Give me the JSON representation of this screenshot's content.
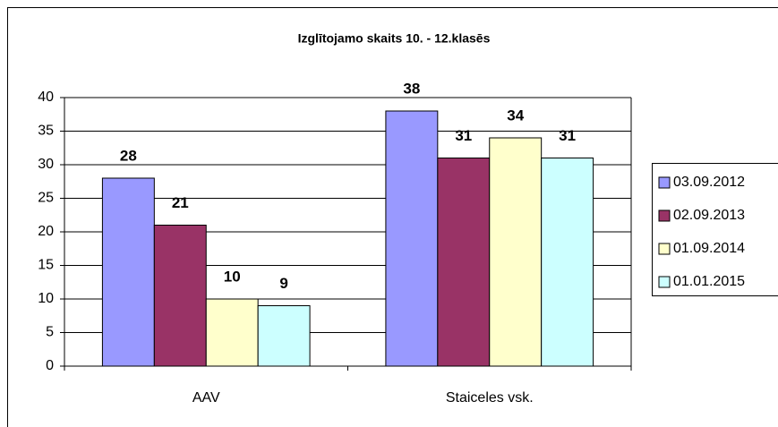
{
  "chart_data": {
    "type": "bar",
    "title": "Izglītojamo skaits 10. - 12.klasēs",
    "categories": [
      "AAV",
      "Staiceles vsk."
    ],
    "series": [
      {
        "name": "03.09.2012",
        "color": "#9999ff",
        "values": [
          28,
          38
        ]
      },
      {
        "name": "02.09.2013",
        "color": "#993366",
        "values": [
          21,
          31
        ]
      },
      {
        "name": "01.09.2014",
        "color": "#ffffcc",
        "values": [
          10,
          34
        ]
      },
      {
        "name": "01.01.2015",
        "color": "#ccffff",
        "values": [
          9,
          31
        ]
      }
    ],
    "ylim": [
      0,
      40
    ],
    "yticks": [
      0,
      5,
      10,
      15,
      20,
      25,
      30,
      35,
      40
    ],
    "grid": true,
    "legend": "right"
  }
}
